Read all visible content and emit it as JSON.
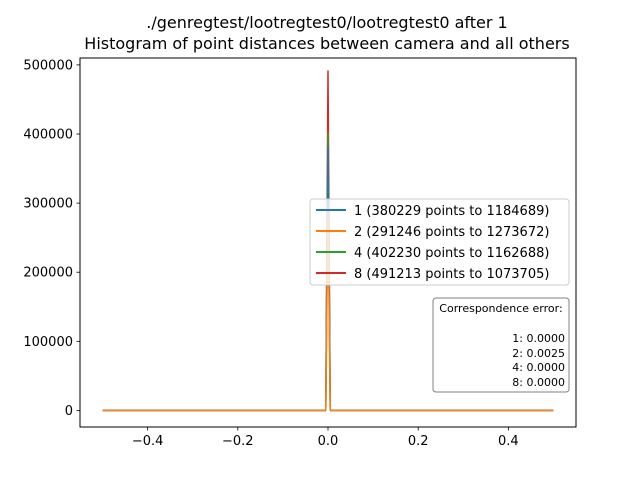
{
  "chart_data": {
    "type": "line",
    "title_line1": "./genregtest/lootregtest0/lootregtest0 after 1",
    "title_line2": "Histogram of point distances between camera and all others",
    "xlabel": "",
    "ylabel": "",
    "xlim": [
      -0.55,
      0.55
    ],
    "ylim": [
      -24000,
      510000
    ],
    "x_ticks": [
      -0.4,
      -0.2,
      0.0,
      0.2,
      0.4
    ],
    "x_tick_labels": [
      "−0.4",
      "−0.2",
      "0.0",
      "0.2",
      "0.4"
    ],
    "y_ticks": [
      0,
      100000,
      200000,
      300000,
      400000,
      500000
    ],
    "y_tick_labels": [
      "0",
      "100000",
      "200000",
      "300000",
      "400000",
      "500000"
    ],
    "grid": false,
    "legend_placement": "center-right",
    "series": [
      {
        "name": "1 (380229 points to 1184689)",
        "color": "#1f77b4",
        "x": [
          -0.5,
          -0.005,
          0.0,
          0.005,
          0.5
        ],
        "y": [
          0,
          0,
          380229,
          0,
          0
        ]
      },
      {
        "name": "2 (291246 points to 1273672)",
        "color": "#ff7f0e",
        "x": [
          -0.5,
          -0.005,
          0.0,
          0.005,
          0.5
        ],
        "y": [
          0,
          0,
          291246,
          0,
          0
        ]
      },
      {
        "name": "4 (402230 points to 1162688)",
        "color": "#2ca02c",
        "x": [
          -0.5,
          -0.005,
          0.0,
          0.005,
          0.5
        ],
        "y": [
          0,
          0,
          402230,
          0,
          0
        ]
      },
      {
        "name": "8 (491213 points to 1073705)",
        "color": "#d62728",
        "x": [
          -0.5,
          -0.005,
          0.0,
          0.005,
          0.5
        ],
        "y": [
          0,
          0,
          491213,
          0,
          0
        ]
      }
    ],
    "draw_order": [
      3,
      2,
      0,
      1
    ],
    "annotation": {
      "title": "Correspondence error:",
      "lines": [
        "1: 0.0000",
        "2: 0.0025",
        "4: 0.0000",
        "8: 0.0000"
      ]
    }
  }
}
